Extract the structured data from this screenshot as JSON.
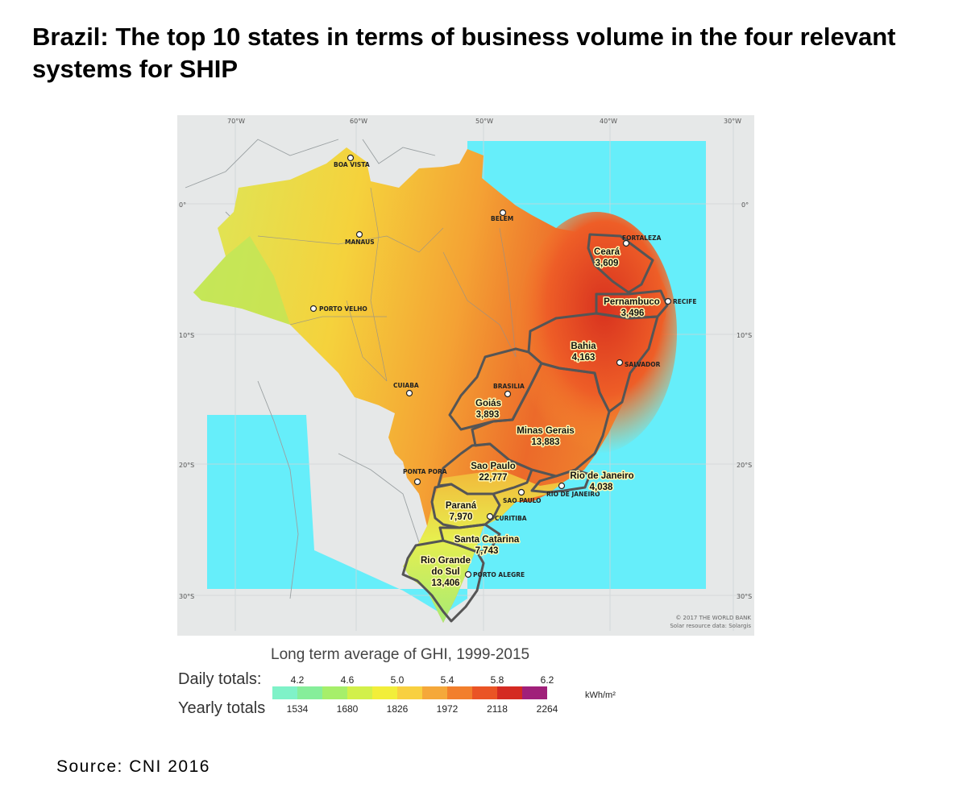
{
  "title": "Brazil: The top 10 states in terms of business volume in the four relevant systems for SHIP",
  "map": {
    "graticule": {
      "longitudes": [
        "70°W",
        "60°W",
        "50°W",
        "40°W",
        "30°W"
      ],
      "latitudes": [
        "0°",
        "10°S",
        "20°S",
        "30°S"
      ]
    },
    "cities": [
      "BOA VISTA",
      "MANAUS",
      "BELEM",
      "FORTALEZA",
      "RECIFE",
      "PORTO VELHO",
      "SALVADOR",
      "CUIABA",
      "BRASILIA",
      "PONTA PORA",
      "SAO PAULO",
      "RIO DE JANEIRO",
      "CURITIBA",
      "PORTO ALEGRE"
    ],
    "states": [
      {
        "name": "Ceará",
        "value": "3,609"
      },
      {
        "name": "Pernambuco",
        "value": "3,496"
      },
      {
        "name": "Bahia",
        "value": "4,163"
      },
      {
        "name": "Goiás",
        "value": "3,893"
      },
      {
        "name": "Minas Gerais",
        "value": "13,883"
      },
      {
        "name": "Sao Paulo",
        "value": "22,777"
      },
      {
        "name": "Rio de Janeiro",
        "value": "4,038"
      },
      {
        "name": "Paraná",
        "value": "7,970"
      },
      {
        "name": "Santa Catarina",
        "value": "7,743"
      },
      {
        "name": "Rio Grande do Sul",
        "name_lines": [
          "Rio Grande",
          "do Sul"
        ],
        "value": "13,406"
      }
    ],
    "credit": [
      "© 2017 THE WORLD BANK",
      "Solar resource data: Solargis"
    ]
  },
  "legend": {
    "title": "Long term average of GHI, 1999-2015",
    "daily_label": "Daily totals:",
    "yearly_label": "Yearly totals",
    "daily_values": [
      "4.2",
      "4.6",
      "5.0",
      "5.4",
      "5.8",
      "6.2"
    ],
    "yearly_values": [
      "1534",
      "1680",
      "1826",
      "1972",
      "2118",
      "2264"
    ],
    "unit": "kWh/m²",
    "colors": [
      "#7ff2c8",
      "#86ee9a",
      "#a6ef6a",
      "#d2f04a",
      "#f2ee3a",
      "#f8d040",
      "#f5a83a",
      "#f27f2c",
      "#ea5425",
      "#d42a22",
      "#a0207a"
    ]
  },
  "source": "Source: CNI 2016"
}
